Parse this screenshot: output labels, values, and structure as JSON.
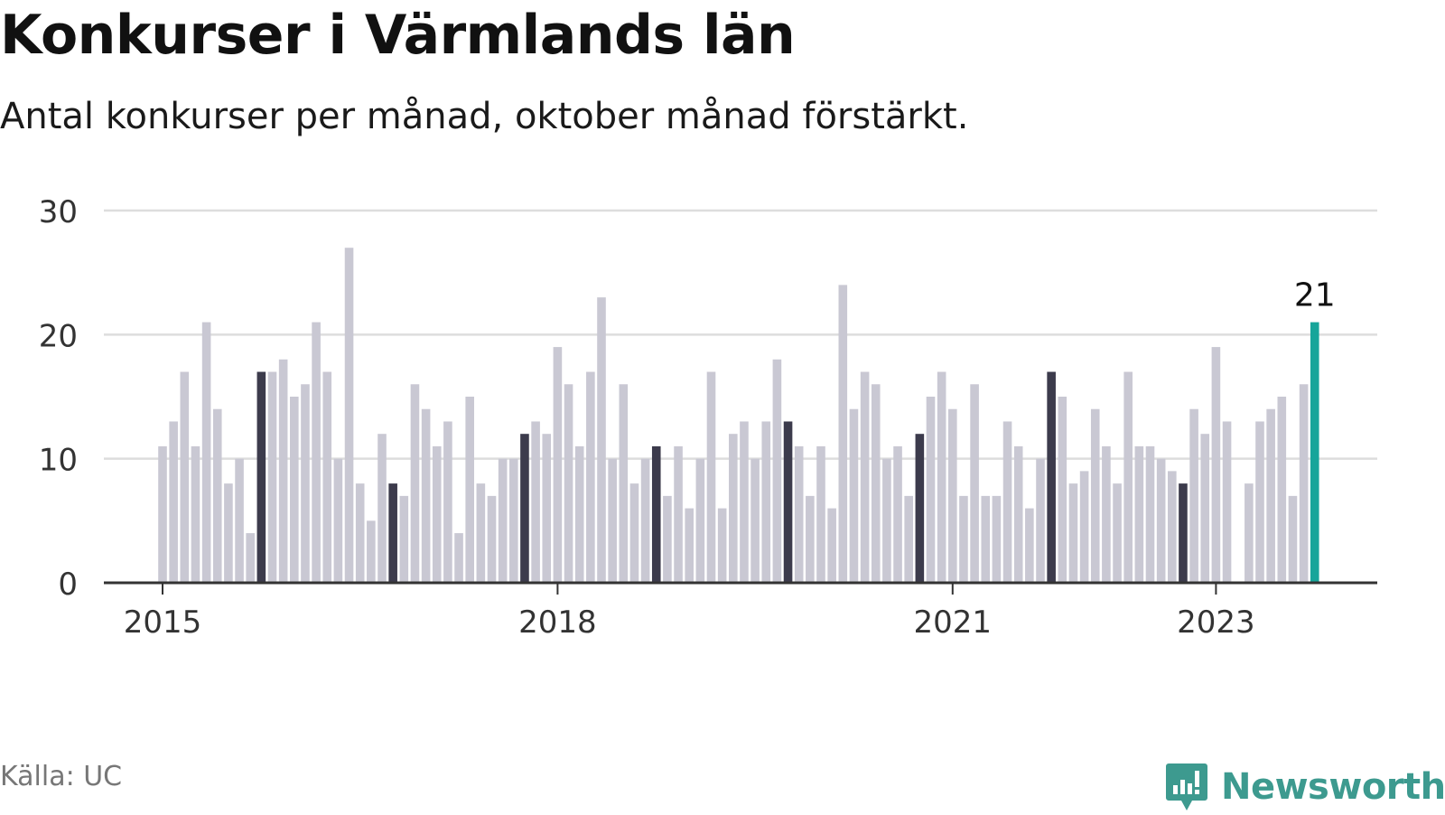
{
  "header": {
    "title": "Konkurser i Värmlands län",
    "subtitle": "Antal konkurser per månad, oktober månad förstärkt."
  },
  "footer": {
    "source": "Källa: UC",
    "brand": "Newsworthy",
    "brand_icon": "newsworthy-logo-icon"
  },
  "colors": {
    "bar_default": "#c9c8d3",
    "bar_october": "#3c3b4c",
    "bar_latest": "#17a59a",
    "grid": "#dddddd",
    "axis": "#333333",
    "brand": "#3d9a8f"
  },
  "chart_data": {
    "type": "bar",
    "title": "Konkurser i Värmlands län",
    "subtitle": "Antal konkurser per månad, oktober månad förstärkt.",
    "xlabel": "",
    "ylabel": "",
    "ylim": [
      0,
      30
    ],
    "yticks": [
      0,
      10,
      20,
      30
    ],
    "xticks": [
      {
        "label": "2015",
        "month": "2015-01"
      },
      {
        "label": "2018",
        "month": "2018-01"
      },
      {
        "label": "2021",
        "month": "2021-01"
      },
      {
        "label": "2023",
        "month": "2023-01"
      }
    ],
    "grid": true,
    "start_month": "2015-01",
    "highlight_rule": "oktober månad förstärkt",
    "annotation": {
      "month": "2023-10",
      "text": "21"
    },
    "values": [
      11,
      13,
      17,
      11,
      21,
      14,
      8,
      10,
      4,
      17,
      17,
      18,
      15,
      16,
      21,
      17,
      10,
      27,
      8,
      5,
      12,
      8,
      7,
      16,
      14,
      11,
      13,
      4,
      15,
      8,
      7,
      10,
      10,
      12,
      13,
      12,
      19,
      16,
      11,
      17,
      23,
      10,
      16,
      8,
      10,
      11,
      7,
      11,
      6,
      10,
      17,
      6,
      12,
      13,
      10,
      13,
      18,
      13,
      11,
      7,
      11,
      6,
      24,
      14,
      17,
      16,
      10,
      11,
      7,
      12,
      15,
      17,
      14,
      7,
      16,
      7,
      7,
      13,
      11,
      6,
      10,
      17,
      15,
      8,
      9,
      14,
      11,
      8,
      17,
      11,
      11,
      10,
      9,
      8,
      14,
      12,
      19,
      13,
      0,
      8,
      13,
      14,
      15,
      7,
      16,
      21
    ]
  }
}
